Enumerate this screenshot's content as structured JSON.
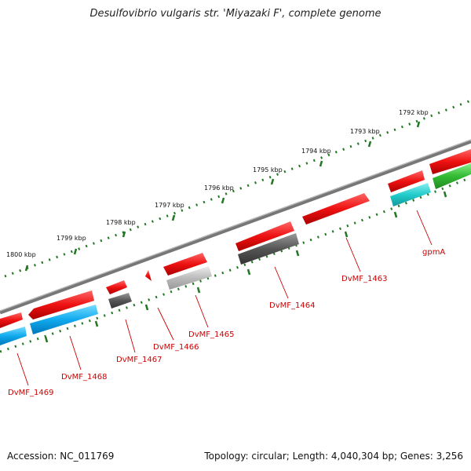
{
  "title": "Desulfovibrio vulgaris str. 'Miyazaki F', complete genome",
  "footer": {
    "accession": "Accession: NC_011769",
    "summary": "Topology: circular; Length: 4,040,304 bp; Genes: 3,256"
  },
  "ruler_labels": [
    "1792 kbp",
    "1793 kbp",
    "1794 kbp",
    "1795 kbp",
    "1796 kbp",
    "1797 kbp",
    "1798 kbp",
    "1799 kbp",
    "1800 kbp"
  ],
  "gene_labels": [
    "gpmA",
    "DvMF_1463",
    "DvMF_1464",
    "DvMF_1465",
    "DvMF_1466",
    "DvMF_1467",
    "DvMF_1468",
    "DvMF_1469"
  ],
  "colors": {
    "cds": "#ee1111",
    "blue": "#11aaee",
    "cyan": "#22cccc",
    "green": "#33bb33",
    "dark_gray": "#555555",
    "light_gray": "#bbbbbb",
    "backbone": "#888888",
    "tick": "#227722",
    "label": "#cc0000"
  }
}
